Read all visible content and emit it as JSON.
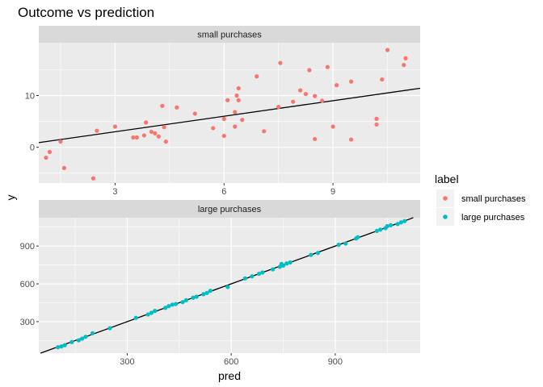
{
  "chart_data": {
    "type": "scatter",
    "title": "Outcome vs prediction",
    "xlabel": "pred",
    "ylabel": "y",
    "legend": {
      "title": "label",
      "placement": "right",
      "entries": [
        {
          "name": "small purchases",
          "color": "#F8766D"
        },
        {
          "name": "large purchases",
          "color": "#00BFC4"
        }
      ]
    },
    "grid": true,
    "reference_line": "y = x",
    "panels": [
      {
        "strip": "small purchases",
        "color": "#F8766D",
        "xlim": [
          0.9,
          11.4
        ],
        "ylim": [
          -6.9,
          20.2
        ],
        "xticks": [
          3,
          6,
          9
        ],
        "yticks": [
          0,
          10
        ],
        "points": [
          [
            1.1,
            -2.0
          ],
          [
            1.2,
            -0.9
          ],
          [
            1.5,
            1.1
          ],
          [
            1.6,
            -4.0
          ],
          [
            2.4,
            -6.0
          ],
          [
            2.5,
            3.2
          ],
          [
            3.0,
            4.0
          ],
          [
            3.5,
            1.9
          ],
          [
            3.6,
            1.9
          ],
          [
            3.8,
            2.3
          ],
          [
            3.85,
            4.8
          ],
          [
            4.0,
            3.0
          ],
          [
            4.1,
            2.7
          ],
          [
            4.2,
            2.1
          ],
          [
            4.3,
            8.0
          ],
          [
            4.35,
            3.9
          ],
          [
            4.4,
            1.1
          ],
          [
            4.7,
            7.7
          ],
          [
            5.2,
            6.5
          ],
          [
            5.7,
            3.7
          ],
          [
            6.0,
            5.5
          ],
          [
            6.0,
            2.2
          ],
          [
            6.1,
            9.1
          ],
          [
            6.3,
            4.0
          ],
          [
            6.3,
            6.8
          ],
          [
            6.35,
            10.0
          ],
          [
            6.4,
            11.4
          ],
          [
            6.4,
            9.1
          ],
          [
            6.5,
            5.3
          ],
          [
            6.9,
            13.7
          ],
          [
            7.1,
            3.1
          ],
          [
            7.5,
            7.8
          ],
          [
            7.55,
            16.3
          ],
          [
            7.9,
            8.8
          ],
          [
            8.1,
            11.0
          ],
          [
            8.25,
            10.3
          ],
          [
            8.35,
            14.9
          ],
          [
            8.5,
            9.9
          ],
          [
            8.5,
            1.6
          ],
          [
            8.7,
            9.0
          ],
          [
            8.85,
            15.5
          ],
          [
            9.0,
            4.0
          ],
          [
            9.1,
            12.0
          ],
          [
            9.5,
            12.7
          ],
          [
            9.5,
            1.5
          ],
          [
            10.2,
            5.5
          ],
          [
            10.2,
            4.4
          ],
          [
            10.35,
            13.1
          ],
          [
            10.5,
            18.8
          ],
          [
            10.95,
            15.9
          ],
          [
            11.0,
            17.2
          ]
        ]
      },
      {
        "strip": "large purchases",
        "color": "#00BFC4",
        "xlim": [
          45,
          1145
        ],
        "ylim": [
          50,
          1125
        ],
        "xticks": [
          300,
          600,
          900
        ],
        "yticks": [
          300,
          600,
          900
        ],
        "points": [
          [
            100,
            97
          ],
          [
            110,
            103
          ],
          [
            120,
            113
          ],
          [
            140,
            138
          ],
          [
            160,
            152
          ],
          [
            170,
            165
          ],
          [
            180,
            180
          ],
          [
            200,
            208
          ],
          [
            250,
            248
          ],
          [
            325,
            330
          ],
          [
            360,
            357
          ],
          [
            370,
            370
          ],
          [
            380,
            385
          ],
          [
            410,
            410
          ],
          [
            420,
            423
          ],
          [
            430,
            435
          ],
          [
            440,
            440
          ],
          [
            460,
            455
          ],
          [
            470,
            470
          ],
          [
            490,
            490
          ],
          [
            500,
            498
          ],
          [
            520,
            518
          ],
          [
            530,
            528
          ],
          [
            540,
            545
          ],
          [
            590,
            575
          ],
          [
            640,
            643
          ],
          [
            660,
            660
          ],
          [
            680,
            680
          ],
          [
            690,
            690
          ],
          [
            720,
            715
          ],
          [
            740,
            735
          ],
          [
            745,
            758
          ],
          [
            750,
            745
          ],
          [
            760,
            762
          ],
          [
            770,
            770
          ],
          [
            830,
            830
          ],
          [
            850,
            845
          ],
          [
            910,
            910
          ],
          [
            930,
            920
          ],
          [
            960,
            960
          ],
          [
            965,
            970
          ],
          [
            1020,
            1020
          ],
          [
            1030,
            1030
          ],
          [
            1045,
            1042
          ],
          [
            1050,
            1058
          ],
          [
            1060,
            1065
          ],
          [
            1080,
            1075
          ],
          [
            1090,
            1088
          ],
          [
            1100,
            1098
          ]
        ]
      }
    ]
  }
}
